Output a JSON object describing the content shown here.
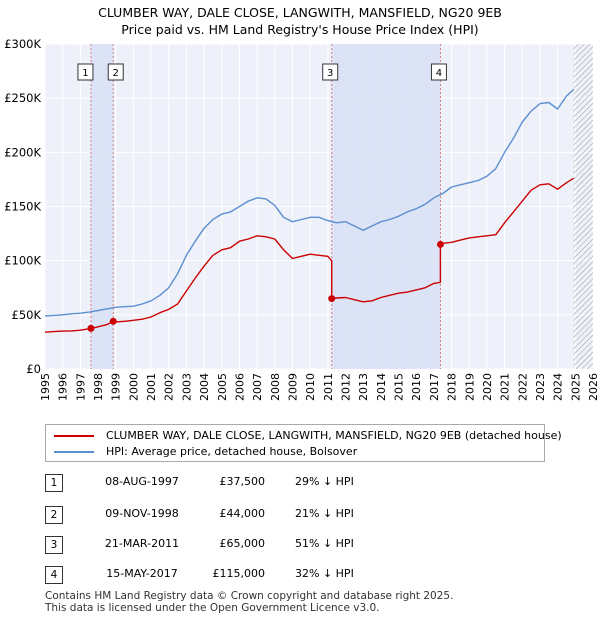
{
  "chart_data": {
    "type": "line",
    "title": "CLUMBER WAY, DALE CLOSE, LANGWITH, MANSFIELD, NG20 9EB",
    "subtitle": "Price paid vs. HM Land Registry's House Price Index (HPI)",
    "xlabel": "",
    "ylabel": "",
    "xlim": [
      1995,
      2026
    ],
    "ylim": [
      0,
      300000
    ],
    "y_ticks": [
      0,
      50000,
      100000,
      150000,
      200000,
      250000,
      300000
    ],
    "y_tick_labels": [
      "£0",
      "£50K",
      "£100K",
      "£150K",
      "£200K",
      "£250K",
      "£300K"
    ],
    "x_ticks": [
      1995,
      1996,
      1997,
      1998,
      1999,
      2000,
      2001,
      2002,
      2003,
      2004,
      2005,
      2006,
      2007,
      2008,
      2009,
      2010,
      2011,
      2012,
      2013,
      2014,
      2015,
      2016,
      2017,
      2018,
      2019,
      2020,
      2021,
      2022,
      2023,
      2024,
      2025,
      2026
    ],
    "x_tick_labels": [
      "1995",
      "1996",
      "1997",
      "1998",
      "1999",
      "2000",
      "2001",
      "2002",
      "2003",
      "2004",
      "2005",
      "2006",
      "2007",
      "2008",
      "2009",
      "2010",
      "2011",
      "2012",
      "2013",
      "2014",
      "2015",
      "2016",
      "2017",
      "2018",
      "2019",
      "2020",
      "2021",
      "2022",
      "2023",
      "2024",
      "2025",
      "2026"
    ],
    "grid": true,
    "series": [
      {
        "name": "CLUMBER WAY, DALE CLOSE, LANGWITH, MANSFIELD, NG20 9EB (detached house)",
        "color": "#cc0000",
        "x": [
          1995.0,
          1995.5,
          1996.0,
          1996.5,
          1997.0,
          1997.6,
          1997.6,
          1998.0,
          1998.5,
          1998.86,
          1998.86,
          1999.0,
          1999.5,
          2000.0,
          2000.5,
          2001.0,
          2001.5,
          2002.0,
          2002.5,
          2003.0,
          2003.5,
          2004.0,
          2004.5,
          2005.0,
          2005.5,
          2006.0,
          2006.5,
          2007.0,
          2007.5,
          2008.0,
          2008.5,
          2009.0,
          2009.5,
          2010.0,
          2010.5,
          2011.0,
          2011.22,
          2011.22,
          2011.5,
          2012.0,
          2012.5,
          2013.0,
          2013.5,
          2014.0,
          2014.5,
          2015.0,
          2015.5,
          2016.0,
          2016.5,
          2017.0,
          2017.37,
          2017.37,
          2017.5,
          2018.0,
          2018.5,
          2019.0,
          2019.5,
          2020.0,
          2020.5,
          2021.0,
          2021.5,
          2022.0,
          2022.5,
          2023.0,
          2023.5,
          2024.0,
          2024.5,
          2024.9
        ],
        "values": [
          34000,
          34500,
          35000,
          35200,
          35800,
          37500,
          37500,
          39000,
          41000,
          44000,
          44000,
          43500,
          44000,
          45000,
          46000,
          48000,
          52000,
          55000,
          60000,
          72000,
          84000,
          95000,
          105000,
          110000,
          112000,
          118000,
          120000,
          123000,
          122000,
          120000,
          110000,
          102000,
          104000,
          106000,
          105000,
          104000,
          100000,
          65000,
          65500,
          66000,
          64000,
          62000,
          63000,
          66000,
          68000,
          70000,
          71000,
          73000,
          75000,
          79000,
          80000,
          115000,
          116000,
          117000,
          119000,
          121000,
          122000,
          123000,
          124000,
          135000,
          145000,
          155000,
          165000,
          170000,
          171000,
          166000,
          172000,
          176000
        ]
      },
      {
        "name": "HPI: Average price, detached house, Bolsover",
        "color": "#5b8fd1",
        "x": [
          1995.0,
          1995.5,
          1996.0,
          1996.5,
          1997.0,
          1997.5,
          1998.0,
          1998.5,
          1999.0,
          1999.5,
          2000.0,
          2000.5,
          2001.0,
          2001.5,
          2002.0,
          2002.5,
          2003.0,
          2003.5,
          2004.0,
          2004.5,
          2005.0,
          2005.5,
          2006.0,
          2006.5,
          2007.0,
          2007.5,
          2008.0,
          2008.5,
          2009.0,
          2009.5,
          2010.0,
          2010.5,
          2011.0,
          2011.5,
          2012.0,
          2012.5,
          2013.0,
          2013.5,
          2014.0,
          2014.5,
          2015.0,
          2015.5,
          2016.0,
          2016.5,
          2017.0,
          2017.5,
          2018.0,
          2018.5,
          2019.0,
          2019.5,
          2020.0,
          2020.5,
          2021.0,
          2021.5,
          2022.0,
          2022.5,
          2023.0,
          2023.5,
          2024.0,
          2024.5,
          2024.9
        ],
        "values": [
          49000,
          49500,
          50000,
          51000,
          51500,
          52500,
          54000,
          55500,
          57000,
          57500,
          58000,
          60000,
          63000,
          68000,
          75000,
          88000,
          105000,
          118000,
          130000,
          138000,
          143000,
          145000,
          150000,
          155000,
          158000,
          157000,
          151000,
          140000,
          136000,
          138000,
          140000,
          140000,
          137000,
          135000,
          136000,
          132000,
          128000,
          132000,
          136000,
          138000,
          141000,
          145000,
          148000,
          152000,
          158000,
          162000,
          168000,
          170000,
          172000,
          174000,
          178000,
          185000,
          200000,
          213000,
          228000,
          238000,
          245000,
          246000,
          240000,
          252000,
          258000
        ]
      }
    ],
    "sales": [
      {
        "label": "1",
        "year": 1997.6,
        "price": 37500
      },
      {
        "label": "2",
        "year": 1998.86,
        "price": 44000
      },
      {
        "label": "3",
        "year": 2011.22,
        "price": 65000
      },
      {
        "label": "4",
        "year": 2017.37,
        "price": 115000
      }
    ],
    "shaded_ranges": [
      [
        1997.6,
        1998.86
      ],
      [
        2011.22,
        2017.37
      ]
    ],
    "hatched_from": 2024.9
  },
  "legend": {
    "property_label": "CLUMBER WAY, DALE CLOSE, LANGWITH, MANSFIELD, NG20 9EB (detached house)",
    "hpi_label": "HPI: Average price, detached house, Bolsover",
    "property_color": "#cc0000",
    "hpi_color": "#5b8fd1"
  },
  "transactions": [
    {
      "num": "1",
      "date": "08-AUG-1997",
      "price": "£37,500",
      "hpi": "29% ↓ HPI"
    },
    {
      "num": "2",
      "date": "09-NOV-1998",
      "price": "£44,000",
      "hpi": "21% ↓ HPI"
    },
    {
      "num": "3",
      "date": "21-MAR-2011",
      "price": "£65,000",
      "hpi": "51% ↓ HPI"
    },
    {
      "num": "4",
      "date": "15-MAY-2017",
      "price": "£115,000",
      "hpi": "32% ↓ HPI"
    }
  ],
  "footer": {
    "line1": "Contains HM Land Registry data © Crown copyright and database right 2025.",
    "line2": "This data is licensed under the Open Government Licence v3.0."
  }
}
